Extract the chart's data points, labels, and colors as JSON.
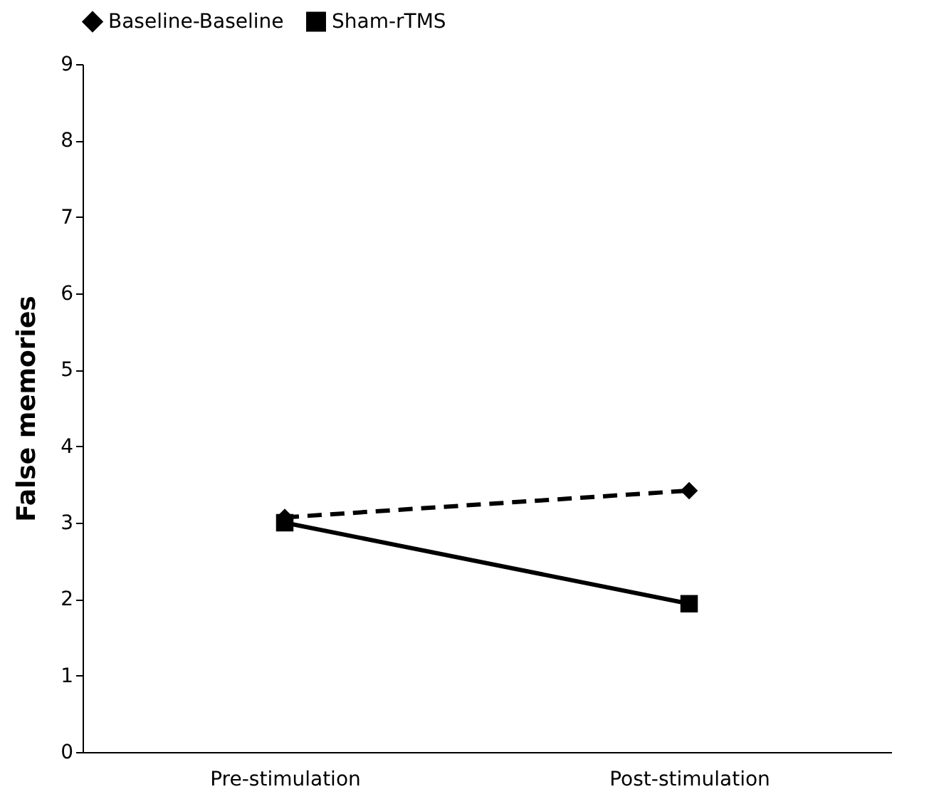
{
  "chart_data": {
    "type": "line",
    "ylabel": "False memories",
    "categories": [
      "Pre-stimulation",
      "Post-stimulation"
    ],
    "series": [
      {
        "name": "Baseline-Baseline",
        "color": "#000000",
        "marker": "diamond",
        "line_style": "dashed",
        "values": [
          3.07,
          3.42
        ]
      },
      {
        "name": "Sham-rTMS",
        "color": "#000000",
        "marker": "square",
        "line_style": "solid",
        "values": [
          3.0,
          1.94
        ]
      }
    ],
    "ylim": [
      0,
      9
    ],
    "yticks": [
      0,
      1,
      2,
      3,
      4,
      5,
      6,
      7,
      8,
      9
    ],
    "grid": false,
    "legend": "top"
  }
}
